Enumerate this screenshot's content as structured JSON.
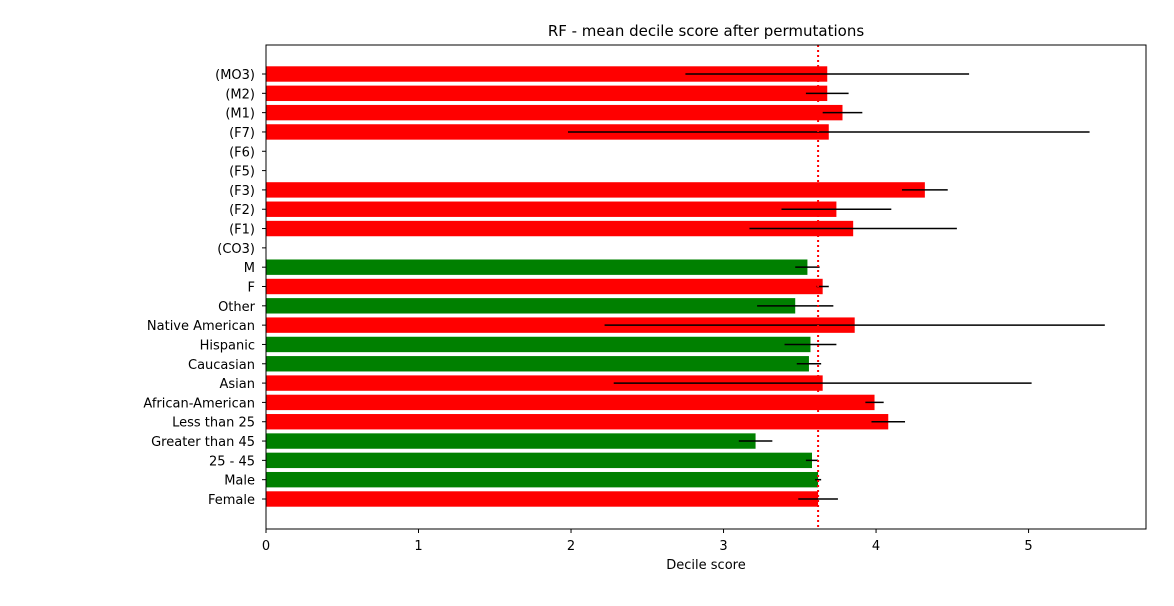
{
  "chart_data": {
    "type": "bar",
    "orientation": "horizontal",
    "title": "RF - mean decile score after permutations",
    "xlabel": "Decile score",
    "ylabel": "",
    "xlim": [
      0,
      5.77
    ],
    "xticks": [
      "0",
      "1",
      "2",
      "3",
      "4",
      "5"
    ],
    "reference_line": {
      "value": 3.62,
      "style": "dotted",
      "color": "#ff0000"
    },
    "colors": {
      "above": "#ff0000",
      "below": "#008000",
      "errorbar": "#000000"
    },
    "categories": [
      "(MO3)",
      "(M2)",
      "(M1)",
      "(F7)",
      "(F6)",
      "(F5)",
      "(F3)",
      "(F2)",
      "(F1)",
      "(CO3)",
      "M",
      "F",
      "Other",
      "Native American",
      "Hispanic",
      "Caucasian",
      "Asian",
      "African-American",
      "Less than 25",
      "Greater than 45",
      "25 - 45",
      "Male",
      "Female"
    ],
    "values": [
      3.68,
      3.68,
      3.78,
      3.69,
      null,
      null,
      4.32,
      3.74,
      3.85,
      null,
      3.55,
      3.65,
      3.47,
      3.86,
      3.57,
      3.56,
      3.65,
      3.99,
      4.08,
      3.21,
      3.58,
      3.62,
      3.62
    ],
    "errors": [
      0.93,
      0.14,
      0.13,
      1.71,
      null,
      null,
      0.15,
      0.36,
      0.68,
      null,
      0.08,
      0.04,
      0.25,
      1.64,
      0.17,
      0.08,
      1.37,
      0.06,
      0.11,
      0.11,
      0.04,
      0.02,
      0.13
    ],
    "bar_colors": [
      "#ff0000",
      "#ff0000",
      "#ff0000",
      "#ff0000",
      null,
      null,
      "#ff0000",
      "#ff0000",
      "#ff0000",
      null,
      "#008000",
      "#ff0000",
      "#008000",
      "#ff0000",
      "#008000",
      "#008000",
      "#ff0000",
      "#ff0000",
      "#ff0000",
      "#008000",
      "#008000",
      "#008000",
      "#ff0000"
    ]
  }
}
